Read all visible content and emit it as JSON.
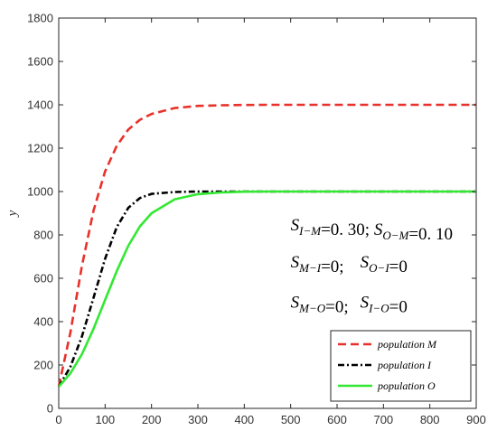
{
  "chart_data": {
    "type": "line",
    "title": "",
    "xlabel": "",
    "ylabel": "y",
    "xlim": [
      0,
      900
    ],
    "ylim": [
      0,
      1800
    ],
    "xticks": [
      0,
      100,
      200,
      300,
      400,
      500,
      600,
      700,
      800,
      900
    ],
    "yticks": [
      0,
      200,
      400,
      600,
      800,
      1000,
      1200,
      1400,
      1600,
      1800
    ],
    "grid": false,
    "legend_position": "bottom-right",
    "x": [
      0,
      25,
      50,
      75,
      100,
      125,
      150,
      175,
      200,
      250,
      300,
      350,
      400,
      450,
      500,
      600,
      700,
      800,
      900
    ],
    "series": [
      {
        "name": "population M",
        "color": "#e8312a",
        "style": "dashed",
        "values": [
          100,
          348,
          658,
          912,
          1093,
          1211,
          1286,
          1331,
          1358,
          1385,
          1395,
          1398,
          1399,
          1400,
          1400,
          1400,
          1400,
          1400,
          1400
        ]
      },
      {
        "name": "population I",
        "color": "#000000",
        "style": "dashdot",
        "values": [
          100,
          191,
          332,
          510,
          690,
          836,
          925,
          970,
          989,
          998,
          1000,
          1000,
          1000,
          1000,
          1000,
          1000,
          1000,
          1000,
          1000
        ]
      },
      {
        "name": "population O",
        "color": "#33e833",
        "style": "solid",
        "values": [
          100,
          161,
          250,
          367,
          500,
          633,
          750,
          839,
          900,
          964,
          988,
          996,
          999,
          1000,
          1000,
          1000,
          1000,
          1000,
          1000
        ]
      }
    ],
    "annotations": [
      {
        "parts": [
          {
            "t": "S",
            "i": true
          },
          {
            "t": "I−M",
            "sub": true,
            "i": true
          },
          {
            "t": "=0. 30; "
          },
          {
            "t": "S",
            "i": true
          },
          {
            "t": "O−M",
            "sub": true,
            "i": true
          },
          {
            "t": "=0. 10"
          }
        ],
        "x": 500,
        "y": 820
      },
      {
        "parts": [
          {
            "t": "S",
            "i": true
          },
          {
            "t": "M−I",
            "sub": true,
            "i": true
          },
          {
            "t": "=0;"
          }
        ],
        "x": 500,
        "y": 650
      },
      {
        "parts": [
          {
            "t": "S",
            "i": true
          },
          {
            "t": "O−I",
            "sub": true,
            "i": true
          },
          {
            "t": "=0"
          }
        ],
        "x": 650,
        "y": 650
      },
      {
        "parts": [
          {
            "t": "S",
            "i": true
          },
          {
            "t": "M−O",
            "sub": true,
            "i": true
          },
          {
            "t": "=0;"
          }
        ],
        "x": 500,
        "y": 465
      },
      {
        "parts": [
          {
            "t": "S",
            "i": true
          },
          {
            "t": "I−O",
            "sub": true,
            "i": true
          },
          {
            "t": "=0"
          }
        ],
        "x": 650,
        "y": 465
      }
    ]
  }
}
